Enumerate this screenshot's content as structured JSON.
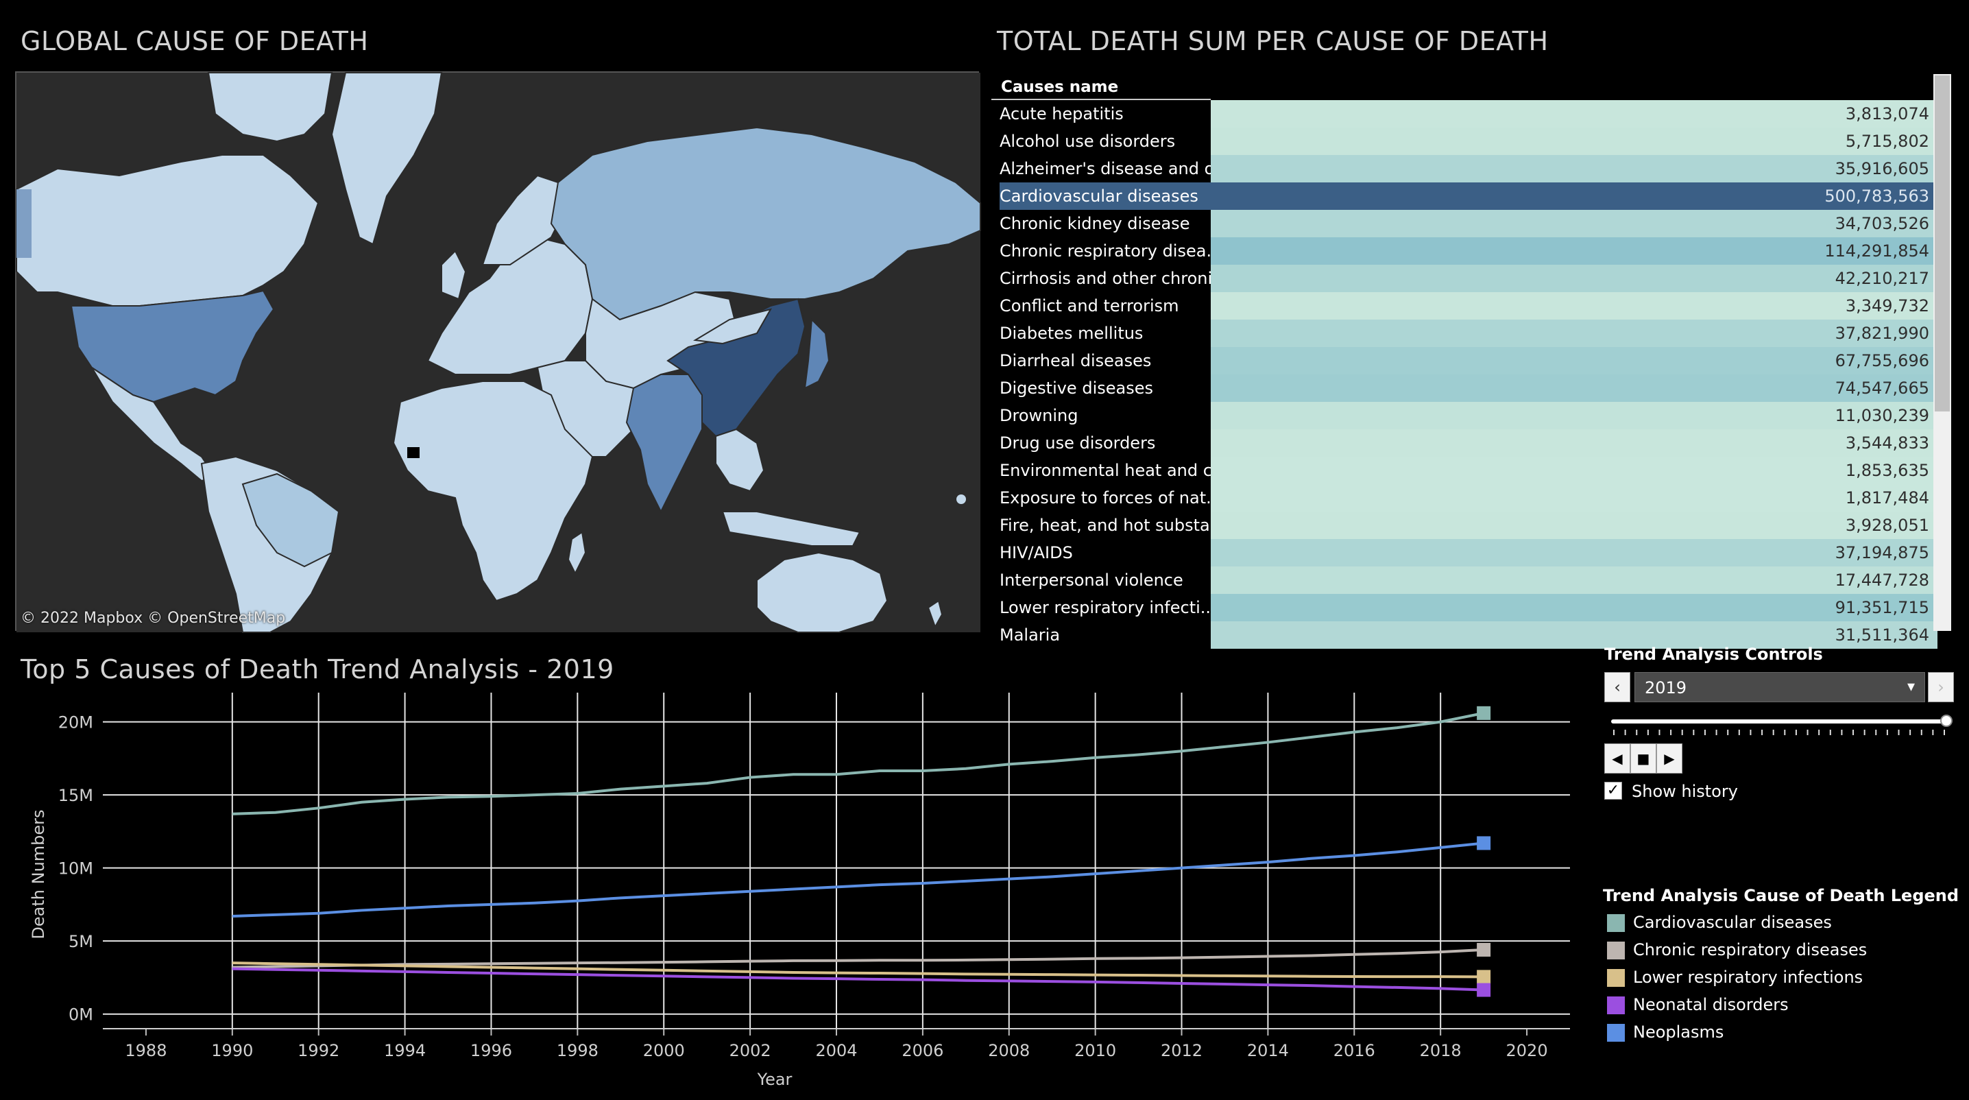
{
  "map": {
    "title": "GLOBAL CAUSE OF DEATH",
    "attribution": "© 2022 Mapbox  © OpenStreetMap",
    "colors": {
      "ocean": "#2b2b2b",
      "low": "#c3d8ea",
      "mid": "#93b6d5",
      "high": "#5f86b6",
      "max": "#31507a"
    }
  },
  "table": {
    "title": "TOTAL DEATH SUM PER CAUSE OF DEATH",
    "header": "Causes name",
    "rows": [
      {
        "name": "Acute hepatitis",
        "value": "3,813,074",
        "color": "#c8e6dc"
      },
      {
        "name": "Alcohol use disorders",
        "value": "5,715,802",
        "color": "#c6e5db"
      },
      {
        "name": "Alzheimer's disease and o..",
        "value": "35,916,605",
        "color": "#aed6d5"
      },
      {
        "name": "Cardiovascular diseases",
        "value": "500,783,563",
        "color": "#3b5f86",
        "selected": true
      },
      {
        "name": "Chronic kidney disease",
        "value": "34,703,526",
        "color": "#b0d7d6"
      },
      {
        "name": "Chronic respiratory disea..",
        "value": "114,291,854",
        "color": "#8fc3cd"
      },
      {
        "name": "Cirrhosis and other chroni..",
        "value": "42,210,217",
        "color": "#acd5d4"
      },
      {
        "name": "Conflict and terrorism",
        "value": "3,349,732",
        "color": "#c8e6dc"
      },
      {
        "name": "Diabetes mellitus",
        "value": "37,821,990",
        "color": "#add6d5"
      },
      {
        "name": "Diarrheal diseases",
        "value": "67,755,696",
        "color": "#a1cfd2"
      },
      {
        "name": "Digestive diseases",
        "value": "74,547,665",
        "color": "#9ecdd1"
      },
      {
        "name": "Drowning",
        "value": "11,030,239",
        "color": "#c2e3da"
      },
      {
        "name": "Drug use disorders",
        "value": "3,544,833",
        "color": "#c8e6dc"
      },
      {
        "name": "Environmental heat and c..",
        "value": "1,853,635",
        "color": "#c9e7dd"
      },
      {
        "name": "Exposure to forces of nat..",
        "value": "1,817,484",
        "color": "#c9e7dd"
      },
      {
        "name": "Fire, heat, and hot substa..",
        "value": "3,928,051",
        "color": "#c8e6dc"
      },
      {
        "name": "HIV/AIDS",
        "value": "37,194,875",
        "color": "#add6d5"
      },
      {
        "name": "Interpersonal violence",
        "value": "17,447,728",
        "color": "#bde0d9"
      },
      {
        "name": "Lower respiratory infecti..",
        "value": "91,351,715",
        "color": "#98cacf"
      },
      {
        "name": "Malaria",
        "value": "31,511,364",
        "color": "#b2d8d6"
      }
    ]
  },
  "trend": {
    "title": "Top 5 Causes of Death Trend Analysis - 2019",
    "controls_title": "Trend Analysis Controls",
    "selected_year": "2019",
    "prev_label": "‹",
    "next_label": "›",
    "show_history_label": "Show history",
    "show_history_checked": "✓",
    "legend_title": "Trend Analysis Cause of Death Legend"
  },
  "chart_data": {
    "type": "line",
    "xlabel": "Year",
    "ylabel": "Death Numbers",
    "xlim": [
      1987,
      2021
    ],
    "ylim": [
      -1,
      22
    ],
    "x_ticks": [
      1988,
      1990,
      1992,
      1994,
      1996,
      1998,
      2000,
      2002,
      2004,
      2006,
      2008,
      2010,
      2012,
      2014,
      2016,
      2018,
      2020
    ],
    "y_ticks": [
      0,
      5,
      10,
      15,
      20
    ],
    "y_tick_labels": [
      "0M",
      "5M",
      "10M",
      "15M",
      "20M"
    ],
    "x": [
      1990,
      1991,
      1992,
      1993,
      1994,
      1995,
      1996,
      1997,
      1998,
      1999,
      2000,
      2001,
      2002,
      2003,
      2004,
      2005,
      2006,
      2007,
      2008,
      2009,
      2010,
      2011,
      2012,
      2013,
      2014,
      2015,
      2016,
      2017,
      2018,
      2019
    ],
    "series": [
      {
        "name": "Cardiovascular diseases",
        "color": "#8ab6b0",
        "values": [
          13.7,
          13.8,
          14.1,
          14.5,
          14.7,
          14.85,
          14.9,
          15.0,
          15.1,
          15.4,
          15.6,
          15.8,
          16.2,
          16.4,
          16.4,
          16.65,
          16.65,
          16.8,
          17.1,
          17.3,
          17.55,
          17.75,
          18.0,
          18.3,
          18.6,
          18.95,
          19.3,
          19.6,
          20.0,
          20.6
        ]
      },
      {
        "name": "Chronic respiratory diseases",
        "color": "#bdb5b0",
        "values": [
          3.2,
          3.25,
          3.3,
          3.35,
          3.4,
          3.42,
          3.45,
          3.47,
          3.5,
          3.52,
          3.55,
          3.58,
          3.62,
          3.65,
          3.66,
          3.68,
          3.68,
          3.7,
          3.73,
          3.76,
          3.8,
          3.82,
          3.85,
          3.9,
          3.95,
          4.0,
          4.08,
          4.15,
          4.25,
          4.4
        ]
      },
      {
        "name": "Lower respiratory infections",
        "color": "#d8c08a",
        "values": [
          3.5,
          3.45,
          3.4,
          3.35,
          3.3,
          3.25,
          3.2,
          3.15,
          3.1,
          3.05,
          3.0,
          2.95,
          2.9,
          2.85,
          2.82,
          2.8,
          2.77,
          2.74,
          2.72,
          2.7,
          2.68,
          2.66,
          2.64,
          2.62,
          2.6,
          2.58,
          2.57,
          2.56,
          2.56,
          2.55
        ]
      },
      {
        "name": "Neonatal disorders",
        "color": "#9b4fe0",
        "values": [
          3.1,
          3.05,
          3.0,
          2.95,
          2.9,
          2.85,
          2.8,
          2.75,
          2.7,
          2.65,
          2.6,
          2.55,
          2.5,
          2.45,
          2.42,
          2.38,
          2.35,
          2.3,
          2.27,
          2.23,
          2.2,
          2.15,
          2.1,
          2.05,
          2.0,
          1.95,
          1.88,
          1.82,
          1.75,
          1.65
        ]
      },
      {
        "name": "Neoplasms",
        "color": "#5b8fe3",
        "values": [
          6.7,
          6.8,
          6.9,
          7.1,
          7.25,
          7.4,
          7.5,
          7.6,
          7.75,
          7.95,
          8.1,
          8.25,
          8.4,
          8.55,
          8.7,
          8.85,
          8.95,
          9.1,
          9.25,
          9.4,
          9.6,
          9.8,
          10.0,
          10.2,
          10.4,
          10.65,
          10.85,
          11.1,
          11.4,
          11.7
        ]
      }
    ]
  }
}
